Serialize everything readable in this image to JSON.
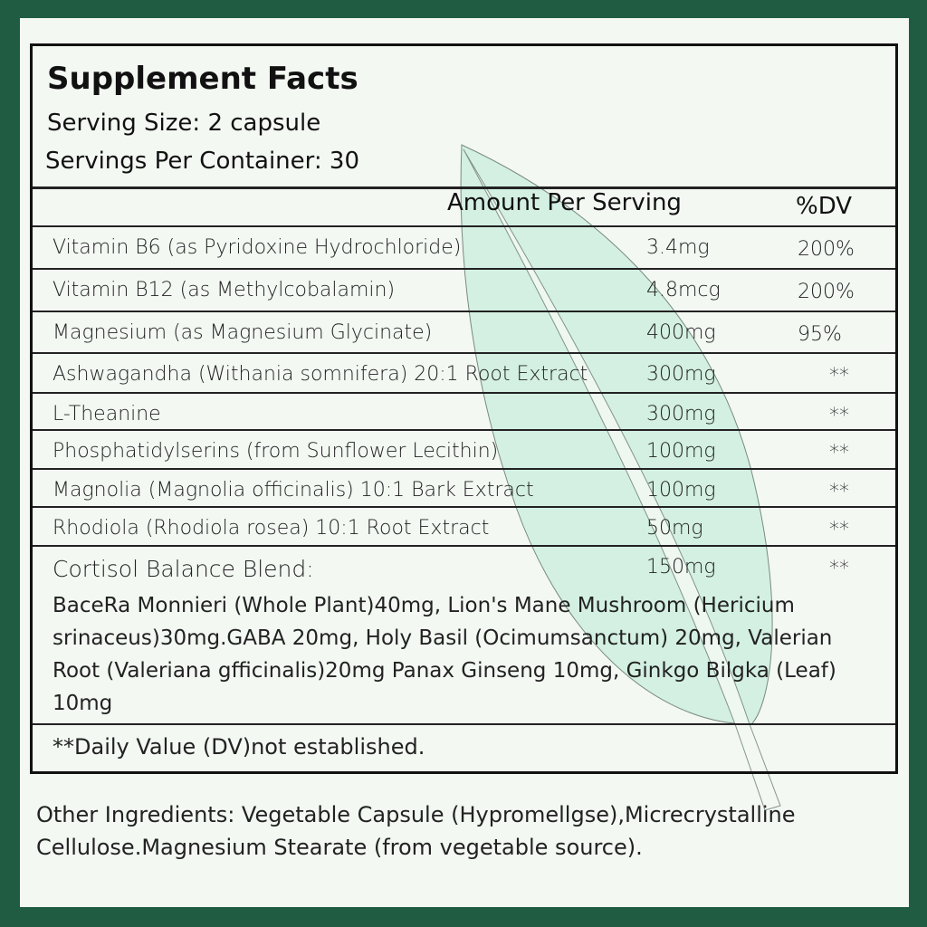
{
  "title": "Supplement Facts",
  "serving_size": "Serving Size: 2 capsule",
  "servings_per_container": "Servings Per Container: 30",
  "header": {
    "amount": "Amount Per Serving",
    "dv": "%DV"
  },
  "rows": [
    {
      "name": "Vitamin B6 (as Pyridoxine Hydrochloride)",
      "amount": "3.4mg",
      "dv": "200%"
    },
    {
      "name": "Vitamin B12 (as Methylcobalamin)",
      "amount": "4.8mcg",
      "dv": "200%"
    },
    {
      "name": "Magnesium (as Magnesium Glycinate)",
      "amount": "400mg",
      "dv": "95%"
    },
    {
      "name": "Ashwagandha (Withania somnifera) 20:1 Root Extract",
      "amount": "300mg",
      "dv": "**"
    },
    {
      "name": "L-Theanine",
      "amount": "300mg",
      "dv": "**"
    },
    {
      "name": "Phosphatidylserins (from Sunflower Lecithin)",
      "amount": "100mg",
      "dv": "**"
    },
    {
      "name": "Magnolia (Magnolia officinalis) 10:1 Bark Extract",
      "amount": "100mg",
      "dv": "**"
    },
    {
      "name": "Rhodiola (Rhodiola rosea) 10:1 Root Extract",
      "amount": "50mg",
      "dv": "**"
    },
    {
      "name": "Cortisol Balance Blend:",
      "amount": "150mg",
      "dv": "**"
    }
  ],
  "blend_detail": "BaceRa Monnieri (Whole Plant)40mg, Lion's Mane Mushroom (Hericium srinaceus)30mg.GABA 20mg, Holy Basil (Ocimumsanctum) 20mg, Valerian Root (Valeriana gfficinalis)20mg Panax Ginseng 10mg, Ginkgo Bilgka (Leaf) 10mg",
  "footnote": "**Daily Value (DV)not established.",
  "other_ingredients": "Other Ingredients: Vegetable Capsule (Hypromellgse),Micrecrystalline Cellulose.Magnesium Stearate (from vegetable source).",
  "colors": {
    "background": "#1f5c42",
    "panel": "#f3f8f3",
    "leaf": "#d3f0e2"
  }
}
